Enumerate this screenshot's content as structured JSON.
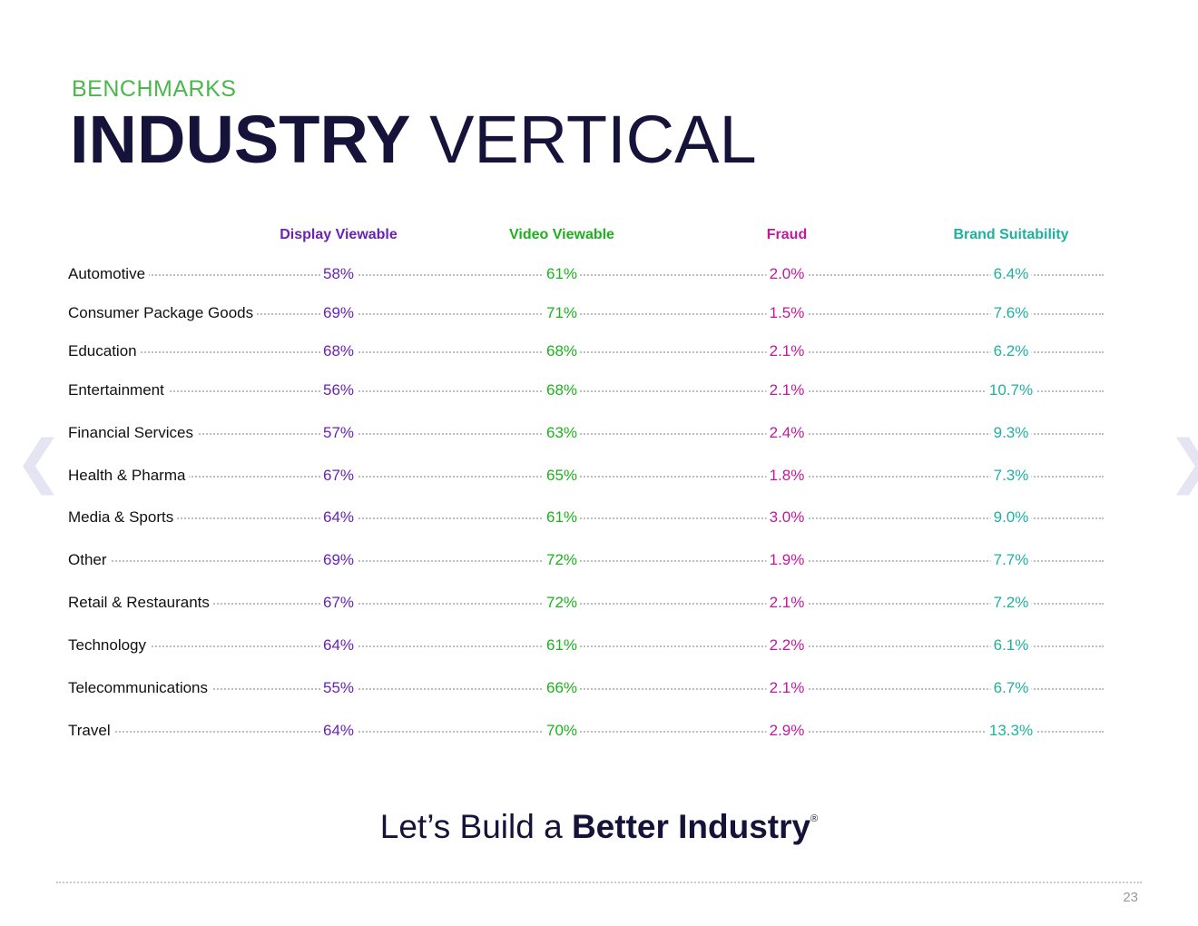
{
  "header": {
    "eyebrow": "BENCHMARKS",
    "title_bold": "INDUSTRY",
    "title_light": "VERTICAL"
  },
  "columns": [
    {
      "label": "Display Viewable",
      "color": "#6a22b4"
    },
    {
      "label": "Video Viewable",
      "color": "#1db11d"
    },
    {
      "label": "Fraud",
      "color": "#c2189c"
    },
    {
      "label": "Brand Suitability",
      "color": "#1fb0a0"
    }
  ],
  "rows": [
    {
      "label": "Automotive",
      "values": [
        "58%",
        "61%",
        "2.0%",
        "6.4%"
      ]
    },
    {
      "label": "Consumer Package Goods",
      "values": [
        "69%",
        "71%",
        "1.5%",
        "7.6%"
      ]
    },
    {
      "label": "Education",
      "values": [
        "68%",
        "68%",
        "2.1%",
        "6.2%"
      ]
    },
    {
      "label": "Entertainment",
      "values": [
        "56%",
        "68%",
        "2.1%",
        "10.7%"
      ]
    },
    {
      "label": "Financial Services",
      "values": [
        "57%",
        "63%",
        "2.4%",
        "9.3%"
      ]
    },
    {
      "label": "Health & Pharma",
      "values": [
        "67%",
        "65%",
        "1.8%",
        "7.3%"
      ]
    },
    {
      "label": "Media & Sports",
      "values": [
        "64%",
        "61%",
        "3.0%",
        "9.0%"
      ]
    },
    {
      "label": "Other",
      "values": [
        "69%",
        "72%",
        "1.9%",
        "7.7%"
      ]
    },
    {
      "label": "Retail & Restaurants",
      "values": [
        "67%",
        "72%",
        "2.1%",
        "7.2%"
      ]
    },
    {
      "label": "Technology",
      "values": [
        "64%",
        "61%",
        "2.2%",
        "6.1%"
      ]
    },
    {
      "label": "Telecommunications",
      "values": [
        "55%",
        "66%",
        "2.1%",
        "6.7%"
      ]
    },
    {
      "label": "Travel",
      "values": [
        "64%",
        "70%",
        "2.9%",
        "13.3%"
      ]
    }
  ],
  "tagline": {
    "lead": "Let’s Build a ",
    "strong": "Better Industry",
    "mark": "®"
  },
  "page_number": "23",
  "nav": {
    "prev_glyph": "❮",
    "next_glyph": "❯"
  },
  "colors": {
    "eyebrow": "#4bb84b",
    "title": "#15133a"
  }
}
